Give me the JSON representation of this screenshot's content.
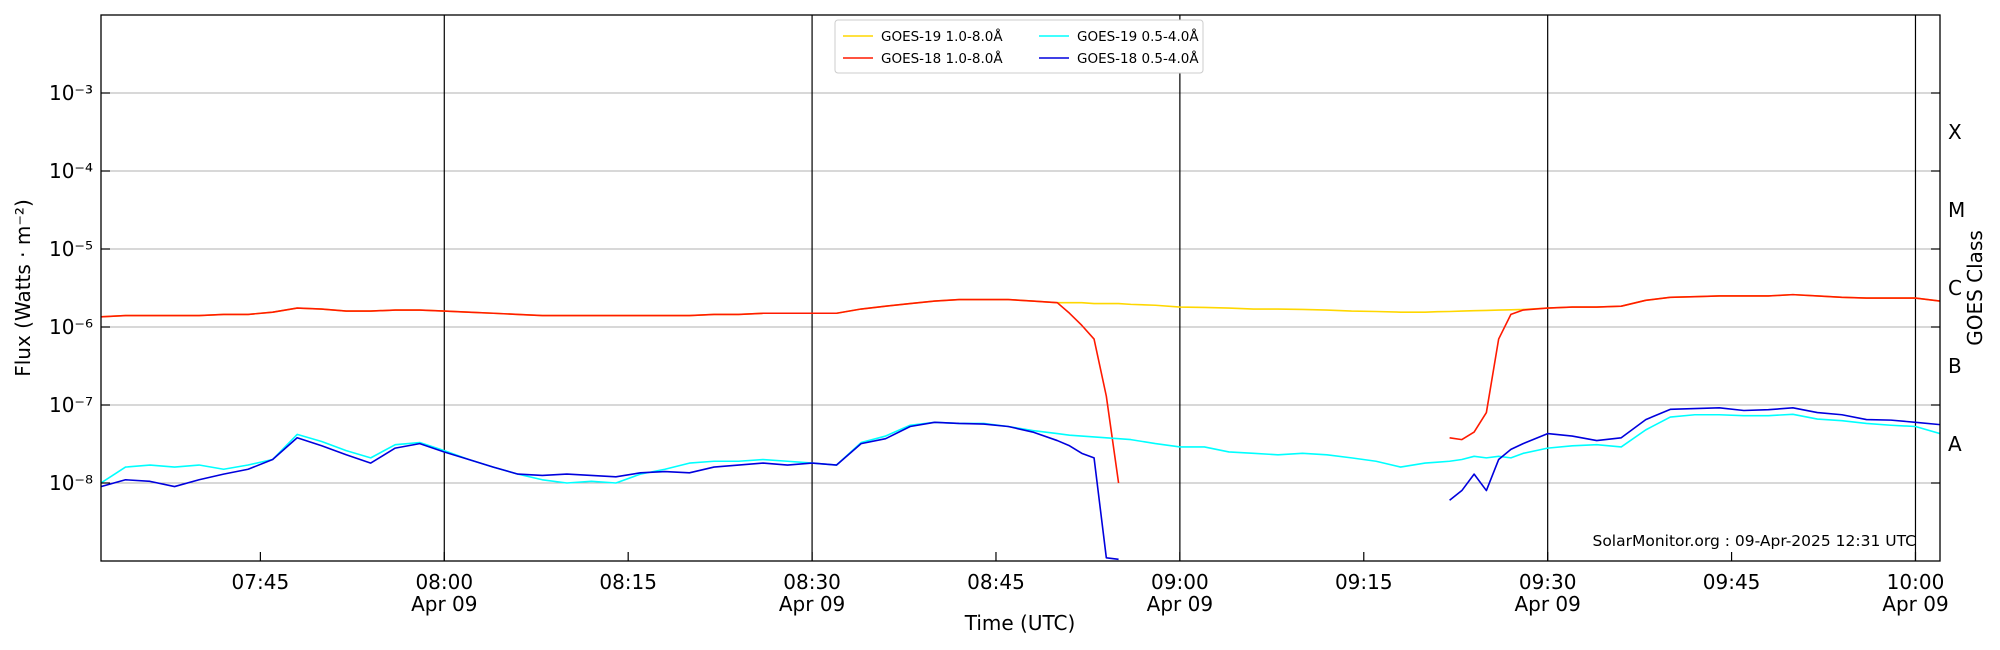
{
  "chart_data": {
    "type": "line",
    "y_scale": "log",
    "grid": true,
    "legend": "upper center",
    "xlabel": "Time (UTC)",
    "ylabel": "Flux (Watts · m⁻²)",
    "y2label": "GOES Class",
    "annotation": "SolarMonitor.org : 09-Apr-2025 12:31 UTC",
    "xlim": [
      "07:32",
      "10:02"
    ],
    "ylim": [
      1e-09,
      0.01
    ],
    "xticks": [
      "07:45",
      {
        "value": "08:00",
        "label": [
          "08:00",
          "Apr 09"
        ]
      },
      "08:15",
      {
        "value": "08:30",
        "label": [
          "08:30",
          "Apr 09"
        ]
      },
      "08:45",
      {
        "value": "09:00",
        "label": [
          "09:00",
          "Apr 09"
        ]
      },
      "09:15",
      {
        "value": "09:30",
        "label": [
          "09:30",
          "Apr 09"
        ]
      },
      "09:45",
      {
        "value": "10:00",
        "label": [
          "10:00",
          "Apr 09"
        ]
      }
    ],
    "x_markers": [
      "08:00",
      "08:30",
      "09:00",
      "09:30",
      "10:00"
    ],
    "yticks": [
      {
        "value": 1e-08,
        "label": "10⁻⁸"
      },
      {
        "value": 1e-07,
        "label": "10⁻⁷"
      },
      {
        "value": 1e-06,
        "label": "10⁻⁶"
      },
      {
        "value": 1e-05,
        "label": "10⁻⁵"
      },
      {
        "value": 0.0001,
        "label": "10⁻⁴"
      },
      {
        "value": 0.001,
        "label": "10⁻³"
      }
    ],
    "y2ticks": [
      {
        "value": 3.162e-08,
        "label": "A"
      },
      {
        "value": 3.162e-07,
        "label": "B"
      },
      {
        "value": 3.162e-06,
        "label": "C"
      },
      {
        "value": 3.162e-05,
        "label": "M"
      },
      {
        "value": 0.0003162,
        "label": "X"
      }
    ],
    "x": [
      "07:32",
      "07:34",
      "07:36",
      "07:38",
      "07:40",
      "07:42",
      "07:44",
      "07:46",
      "07:48",
      "07:50",
      "07:52",
      "07:54",
      "07:56",
      "07:58",
      "08:00",
      "08:02",
      "08:04",
      "08:06",
      "08:08",
      "08:10",
      "08:12",
      "08:14",
      "08:16",
      "08:18",
      "08:20",
      "08:22",
      "08:24",
      "08:26",
      "08:28",
      "08:30",
      "08:32",
      "08:34",
      "08:36",
      "08:38",
      "08:40",
      "08:42",
      "08:44",
      "08:46",
      "08:48",
      "08:50",
      "08:51",
      "08:52",
      "08:53",
      "08:54",
      "08:55",
      "08:56",
      "08:58",
      "09:00",
      "09:02",
      "09:04",
      "09:06",
      "09:08",
      "09:10",
      "09:12",
      "09:14",
      "09:16",
      "09:18",
      "09:20",
      "09:21",
      "09:22",
      "09:23",
      "09:24",
      "09:25",
      "09:26",
      "09:27",
      "09:28",
      "09:30",
      "09:32",
      "09:34",
      "09:36",
      "09:38",
      "09:40",
      "09:42",
      "09:44",
      "09:46",
      "09:48",
      "09:50",
      "09:52",
      "09:54",
      "09:56",
      "09:58",
      "10:00",
      "10:02"
    ],
    "series": [
      {
        "name": "GOES-19 1.0-8.0Å",
        "color": "#ffd700",
        "values": [
          1.35e-06,
          1.4e-06,
          1.4e-06,
          1.4e-06,
          1.4e-06,
          1.45e-06,
          1.45e-06,
          1.55e-06,
          1.75e-06,
          1.7e-06,
          1.6e-06,
          1.6e-06,
          1.65e-06,
          1.65e-06,
          1.6e-06,
          1.55e-06,
          1.5e-06,
          1.45e-06,
          1.4e-06,
          1.4e-06,
          1.4e-06,
          1.4e-06,
          1.4e-06,
          1.4e-06,
          1.4e-06,
          1.45e-06,
          1.45e-06,
          1.5e-06,
          1.5e-06,
          1.5e-06,
          1.5e-06,
          1.7e-06,
          1.85e-06,
          2e-06,
          2.15e-06,
          2.25e-06,
          2.25e-06,
          2.25e-06,
          2.15e-06,
          2.05e-06,
          2.05e-06,
          2.05e-06,
          2e-06,
          2e-06,
          2e-06,
          1.95e-06,
          1.9e-06,
          1.8e-06,
          1.78e-06,
          1.75e-06,
          1.7e-06,
          1.7e-06,
          1.68e-06,
          1.65e-06,
          1.6e-06,
          1.58e-06,
          1.55e-06,
          1.55e-06,
          1.57e-06,
          1.58e-06,
          1.6e-06,
          1.62e-06,
          1.63e-06,
          1.65e-06,
          1.66e-06,
          1.68e-06,
          1.75e-06,
          1.8e-06,
          1.8e-06,
          1.85e-06,
          2.2e-06,
          2.4e-06,
          2.45e-06,
          2.5e-06,
          2.5e-06,
          2.5e-06,
          2.6e-06,
          2.5e-06,
          2.4e-06,
          2.35e-06,
          2.35e-06,
          2.35e-06,
          2.15e-06
        ]
      },
      {
        "name": "GOES-18 1.0-8.0Å",
        "color": "#ff1a00",
        "values": [
          1.35e-06,
          1.4e-06,
          1.4e-06,
          1.4e-06,
          1.4e-06,
          1.45e-06,
          1.45e-06,
          1.55e-06,
          1.75e-06,
          1.7e-06,
          1.6e-06,
          1.6e-06,
          1.65e-06,
          1.65e-06,
          1.6e-06,
          1.55e-06,
          1.5e-06,
          1.45e-06,
          1.4e-06,
          1.4e-06,
          1.4e-06,
          1.4e-06,
          1.4e-06,
          1.4e-06,
          1.4e-06,
          1.45e-06,
          1.45e-06,
          1.5e-06,
          1.5e-06,
          1.5e-06,
          1.5e-06,
          1.7e-06,
          1.85e-06,
          2e-06,
          2.15e-06,
          2.25e-06,
          2.25e-06,
          2.25e-06,
          2.15e-06,
          2.05e-06,
          1.5e-06,
          1.05e-06,
          7e-07,
          1.3e-07,
          1e-08,
          null,
          null,
          null,
          null,
          null,
          null,
          null,
          null,
          null,
          null,
          null,
          null,
          null,
          null,
          3.8e-08,
          3.6e-08,
          4.5e-08,
          8e-08,
          7e-07,
          1.45e-06,
          1.65e-06,
          1.75e-06,
          1.8e-06,
          1.8e-06,
          1.85e-06,
          2.2e-06,
          2.4e-06,
          2.45e-06,
          2.5e-06,
          2.5e-06,
          2.5e-06,
          2.6e-06,
          2.5e-06,
          2.4e-06,
          2.35e-06,
          2.35e-06,
          2.35e-06,
          2.15e-06
        ]
      },
      {
        "name": "GOES-19 0.5-4.0Å",
        "color": "#00ffff",
        "values": [
          1e-08,
          1.6e-08,
          1.7e-08,
          1.6e-08,
          1.7e-08,
          1.5e-08,
          1.7e-08,
          2e-08,
          4.2e-08,
          3.4e-08,
          2.6e-08,
          2.1e-08,
          3.1e-08,
          3.3e-08,
          2.6e-08,
          2e-08,
          1.6e-08,
          1.3e-08,
          1.1e-08,
          1e-08,
          1.05e-08,
          1e-08,
          1.3e-08,
          1.5e-08,
          1.8e-08,
          1.9e-08,
          1.9e-08,
          2e-08,
          1.9e-08,
          1.8e-08,
          1.7e-08,
          3.3e-08,
          4e-08,
          5.5e-08,
          6e-08,
          5.8e-08,
          5.8e-08,
          5.3e-08,
          4.7e-08,
          4.3e-08,
          4.1e-08,
          4e-08,
          3.9e-08,
          3.8e-08,
          3.7e-08,
          3.6e-08,
          3.2e-08,
          2.9e-08,
          2.9e-08,
          2.5e-08,
          2.4e-08,
          2.3e-08,
          2.4e-08,
          2.3e-08,
          2.1e-08,
          1.9e-08,
          1.6e-08,
          1.8e-08,
          1.85e-08,
          1.9e-08,
          2e-08,
          2.2e-08,
          2.1e-08,
          2.2e-08,
          2.1e-08,
          2.4e-08,
          2.8e-08,
          3e-08,
          3.1e-08,
          2.9e-08,
          4.8e-08,
          7e-08,
          7.5e-08,
          7.5e-08,
          7.3e-08,
          7.3e-08,
          7.6e-08,
          6.6e-08,
          6.3e-08,
          5.8e-08,
          5.5e-08,
          5.3e-08,
          4.3e-08
        ]
      },
      {
        "name": "GOES-18 0.5-4.0Å",
        "color": "#0000dd",
        "values": [
          9e-09,
          1.1e-08,
          1.05e-08,
          9e-09,
          1.1e-08,
          1.3e-08,
          1.5e-08,
          2e-08,
          3.8e-08,
          3e-08,
          2.3e-08,
          1.8e-08,
          2.8e-08,
          3.2e-08,
          2.5e-08,
          2e-08,
          1.6e-08,
          1.3e-08,
          1.25e-08,
          1.3e-08,
          1.25e-08,
          1.2e-08,
          1.35e-08,
          1.4e-08,
          1.35e-08,
          1.6e-08,
          1.7e-08,
          1.8e-08,
          1.7e-08,
          1.8e-08,
          1.7e-08,
          3.2e-08,
          3.7e-08,
          5.3e-08,
          6e-08,
          5.8e-08,
          5.7e-08,
          5.3e-08,
          4.5e-08,
          3.5e-08,
          3e-08,
          2.4e-08,
          2.1e-08,
          1.1e-09,
          1.05e-09,
          null,
          null,
          null,
          null,
          null,
          null,
          null,
          null,
          null,
          null,
          null,
          null,
          null,
          null,
          6e-09,
          8e-09,
          1.3e-08,
          8e-09,
          2e-08,
          2.7e-08,
          3.2e-08,
          4.3e-08,
          4e-08,
          3.5e-08,
          3.8e-08,
          6.5e-08,
          8.8e-08,
          9e-08,
          9.2e-08,
          8.5e-08,
          8.7e-08,
          9.2e-08,
          8e-08,
          7.5e-08,
          6.5e-08,
          6.4e-08,
          6e-08,
          5.6e-08
        ]
      }
    ]
  }
}
